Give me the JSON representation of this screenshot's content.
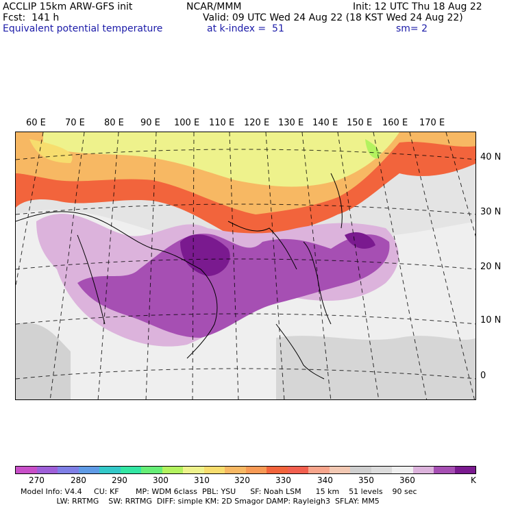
{
  "header": {
    "model_line": "ACCLIP 15km ARW-GFS init",
    "center": "NCAR/MMM",
    "init": "Init: 12 UTC Thu 18 Aug 22",
    "fcst": "Fcst:  141 h",
    "valid": "Valid: 09 UTC Wed 24 Aug 22 (18 KST Wed 24 Aug 22)",
    "field": "Equivalent potential temperature",
    "level": "at k-index =  51",
    "smooth": "sm= 2"
  },
  "lon_labels": [
    "60 E",
    "70 E",
    "80 E",
    "90 E",
    "100 E",
    "110 E",
    "120 E",
    "130 E",
    "140 E",
    "150 E",
    "160 E",
    "170 E"
  ],
  "lat_labels": [
    "40 N",
    "30 N",
    "20 N",
    "10 N",
    "0"
  ],
  "colorbar": {
    "colors": [
      "#c84fc8",
      "#9e5fd8",
      "#7f7fe6",
      "#5f9be6",
      "#33c8c8",
      "#33e6a3",
      "#66ee77",
      "#b3f25f",
      "#eef28c",
      "#f7dd6e",
      "#f7b863",
      "#f79a55",
      "#f2643c",
      "#f25f4f",
      "#f7a58c",
      "#f2c8b3",
      "#cfcfcf",
      "#dcdcdc",
      "#efefef",
      "#dcb3dc",
      "#a64fb3",
      "#7a1a8f"
    ],
    "labels": [
      "270",
      "280",
      "290",
      "300",
      "310",
      "320",
      "330",
      "340",
      "350",
      "360",
      "K"
    ],
    "unit": "K"
  },
  "footer": {
    "line1": "Model Info: V4.4     CU: KF       MP: WDM 6class  PBL: YSU      SF: Noah LSM      15 km    51 levels    90 sec",
    "line2": "               LW: RRTMG    SW: RRTMG  DIFF: simple KM: 2D Smagor DAMP: Rayleigh3  SFLAY: MM5"
  }
}
